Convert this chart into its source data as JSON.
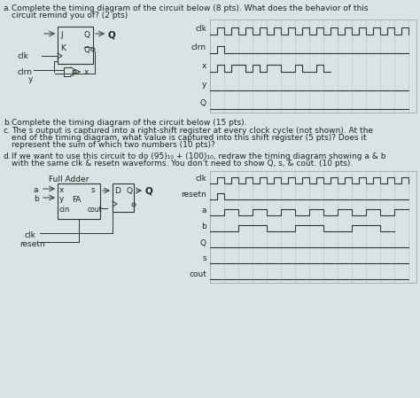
{
  "bg_color": "#d8e4e4",
  "text_color": "#222222",
  "line_color": "#333333",
  "dashed_color": "#777777",
  "font_size": 6.5,
  "figsize": [
    4.74,
    4.49
  ],
  "dpi": 100,
  "signals_top": [
    "clk",
    "clrn",
    "x",
    "y",
    "Q"
  ],
  "signals_bot": [
    "clk",
    "resetn",
    "a",
    "b",
    "Q",
    "s",
    "cout"
  ]
}
